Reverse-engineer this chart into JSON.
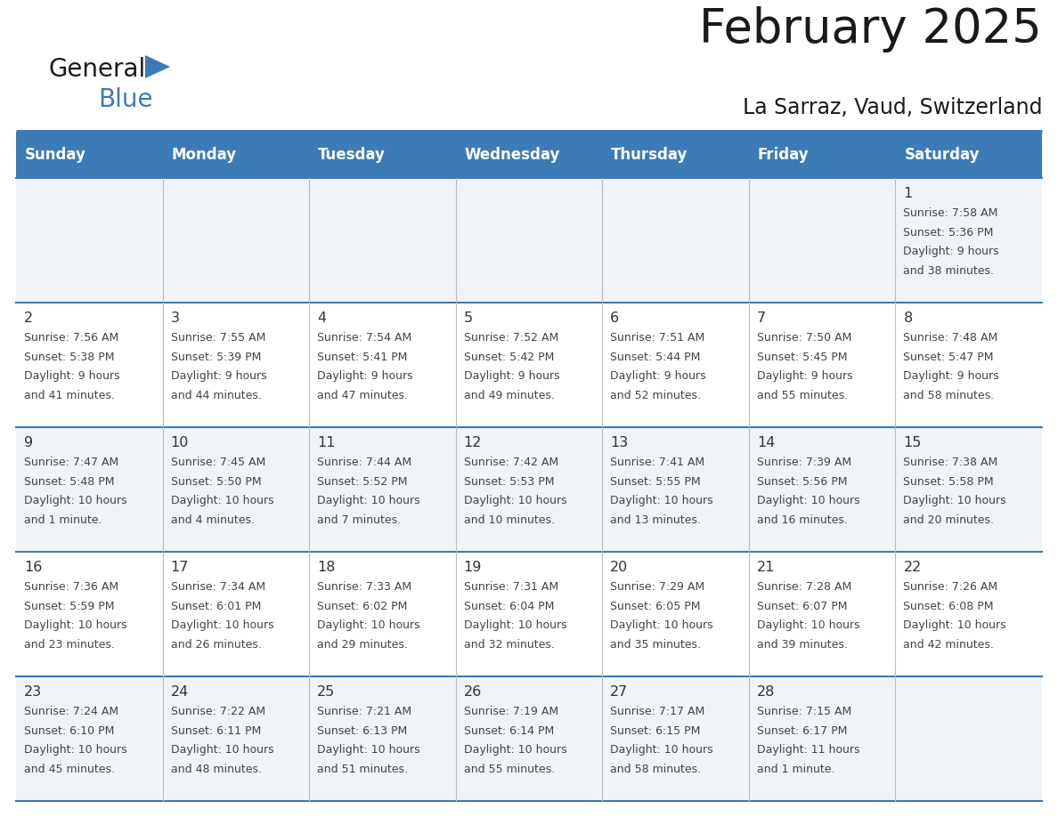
{
  "title": "February 2025",
  "subtitle": "La Sarraz, Vaud, Switzerland",
  "days_of_week": [
    "Sunday",
    "Monday",
    "Tuesday",
    "Wednesday",
    "Thursday",
    "Friday",
    "Saturday"
  ],
  "header_bg": "#3C7BB5",
  "header_text": "#FFFFFF",
  "row_bg_odd": "#F0F4F8",
  "row_bg_even": "#FFFFFF",
  "border_color": "#3C7BB5",
  "sep_line_color": "#3C7BB5",
  "text_color": "#444444",
  "day_num_color": "#333333",
  "calendar_data": [
    {
      "day": 1,
      "col": 6,
      "row": 0,
      "sunrise": "7:58 AM",
      "sunset": "5:36 PM",
      "daylight_h": "9",
      "daylight_m": "38 minutes"
    },
    {
      "day": 2,
      "col": 0,
      "row": 1,
      "sunrise": "7:56 AM",
      "sunset": "5:38 PM",
      "daylight_h": "9",
      "daylight_m": "41 minutes"
    },
    {
      "day": 3,
      "col": 1,
      "row": 1,
      "sunrise": "7:55 AM",
      "sunset": "5:39 PM",
      "daylight_h": "9",
      "daylight_m": "44 minutes"
    },
    {
      "day": 4,
      "col": 2,
      "row": 1,
      "sunrise": "7:54 AM",
      "sunset": "5:41 PM",
      "daylight_h": "9",
      "daylight_m": "47 minutes"
    },
    {
      "day": 5,
      "col": 3,
      "row": 1,
      "sunrise": "7:52 AM",
      "sunset": "5:42 PM",
      "daylight_h": "9",
      "daylight_m": "49 minutes"
    },
    {
      "day": 6,
      "col": 4,
      "row": 1,
      "sunrise": "7:51 AM",
      "sunset": "5:44 PM",
      "daylight_h": "9",
      "daylight_m": "52 minutes"
    },
    {
      "day": 7,
      "col": 5,
      "row": 1,
      "sunrise": "7:50 AM",
      "sunset": "5:45 PM",
      "daylight_h": "9",
      "daylight_m": "55 minutes"
    },
    {
      "day": 8,
      "col": 6,
      "row": 1,
      "sunrise": "7:48 AM",
      "sunset": "5:47 PM",
      "daylight_h": "9",
      "daylight_m": "58 minutes"
    },
    {
      "day": 9,
      "col": 0,
      "row": 2,
      "sunrise": "7:47 AM",
      "sunset": "5:48 PM",
      "daylight_h": "10",
      "daylight_m": "1 minute"
    },
    {
      "day": 10,
      "col": 1,
      "row": 2,
      "sunrise": "7:45 AM",
      "sunset": "5:50 PM",
      "daylight_h": "10",
      "daylight_m": "4 minutes"
    },
    {
      "day": 11,
      "col": 2,
      "row": 2,
      "sunrise": "7:44 AM",
      "sunset": "5:52 PM",
      "daylight_h": "10",
      "daylight_m": "7 minutes"
    },
    {
      "day": 12,
      "col": 3,
      "row": 2,
      "sunrise": "7:42 AM",
      "sunset": "5:53 PM",
      "daylight_h": "10",
      "daylight_m": "10 minutes"
    },
    {
      "day": 13,
      "col": 4,
      "row": 2,
      "sunrise": "7:41 AM",
      "sunset": "5:55 PM",
      "daylight_h": "10",
      "daylight_m": "13 minutes"
    },
    {
      "day": 14,
      "col": 5,
      "row": 2,
      "sunrise": "7:39 AM",
      "sunset": "5:56 PM",
      "daylight_h": "10",
      "daylight_m": "16 minutes"
    },
    {
      "day": 15,
      "col": 6,
      "row": 2,
      "sunrise": "7:38 AM",
      "sunset": "5:58 PM",
      "daylight_h": "10",
      "daylight_m": "20 minutes"
    },
    {
      "day": 16,
      "col": 0,
      "row": 3,
      "sunrise": "7:36 AM",
      "sunset": "5:59 PM",
      "daylight_h": "10",
      "daylight_m": "23 minutes"
    },
    {
      "day": 17,
      "col": 1,
      "row": 3,
      "sunrise": "7:34 AM",
      "sunset": "6:01 PM",
      "daylight_h": "10",
      "daylight_m": "26 minutes"
    },
    {
      "day": 18,
      "col": 2,
      "row": 3,
      "sunrise": "7:33 AM",
      "sunset": "6:02 PM",
      "daylight_h": "10",
      "daylight_m": "29 minutes"
    },
    {
      "day": 19,
      "col": 3,
      "row": 3,
      "sunrise": "7:31 AM",
      "sunset": "6:04 PM",
      "daylight_h": "10",
      "daylight_m": "32 minutes"
    },
    {
      "day": 20,
      "col": 4,
      "row": 3,
      "sunrise": "7:29 AM",
      "sunset": "6:05 PM",
      "daylight_h": "10",
      "daylight_m": "35 minutes"
    },
    {
      "day": 21,
      "col": 5,
      "row": 3,
      "sunrise": "7:28 AM",
      "sunset": "6:07 PM",
      "daylight_h": "10",
      "daylight_m": "39 minutes"
    },
    {
      "day": 22,
      "col": 6,
      "row": 3,
      "sunrise": "7:26 AM",
      "sunset": "6:08 PM",
      "daylight_h": "10",
      "daylight_m": "42 minutes"
    },
    {
      "day": 23,
      "col": 0,
      "row": 4,
      "sunrise": "7:24 AM",
      "sunset": "6:10 PM",
      "daylight_h": "10",
      "daylight_m": "45 minutes"
    },
    {
      "day": 24,
      "col": 1,
      "row": 4,
      "sunrise": "7:22 AM",
      "sunset": "6:11 PM",
      "daylight_h": "10",
      "daylight_m": "48 minutes"
    },
    {
      "day": 25,
      "col": 2,
      "row": 4,
      "sunrise": "7:21 AM",
      "sunset": "6:13 PM",
      "daylight_h": "10",
      "daylight_m": "51 minutes"
    },
    {
      "day": 26,
      "col": 3,
      "row": 4,
      "sunrise": "7:19 AM",
      "sunset": "6:14 PM",
      "daylight_h": "10",
      "daylight_m": "55 minutes"
    },
    {
      "day": 27,
      "col": 4,
      "row": 4,
      "sunrise": "7:17 AM",
      "sunset": "6:15 PM",
      "daylight_h": "10",
      "daylight_m": "58 minutes"
    },
    {
      "day": 28,
      "col": 5,
      "row": 4,
      "sunrise": "7:15 AM",
      "sunset": "6:17 PM",
      "daylight_h": "11",
      "daylight_m": "1 minute"
    }
  ],
  "num_rows": 5,
  "num_cols": 7
}
